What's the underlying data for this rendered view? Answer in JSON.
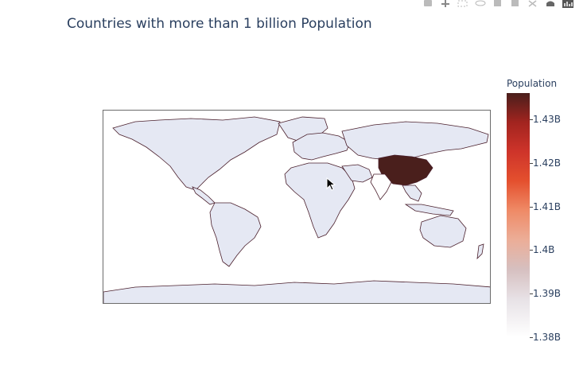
{
  "chart_data": {
    "type": "choropleth",
    "title": "Countries with more than 1 billion Population",
    "colorbar": {
      "title": "Population",
      "ticks": [
        "1.43B",
        "1.42B",
        "1.41B",
        "1.4B",
        "1.39B",
        "1.38B"
      ],
      "tick_values": [
        1430000000,
        1420000000,
        1410000000,
        1400000000,
        1390000000,
        1380000000
      ],
      "range": [
        1380000000,
        1436000000
      ],
      "colorscale": [
        "#ffffff",
        "#e8e3e7",
        "#d6bfbf",
        "#ecad97",
        "#ef8a66",
        "#e4502e",
        "#ce342a",
        "#a2241f",
        "#4a1f1c"
      ]
    },
    "land_color": "#e5e8f3",
    "coastline_color": "#4a1f2c",
    "highlighted_regions": [
      {
        "region": "china",
        "value": 1436000000
      },
      {
        "region": "india",
        "value": 1380000000
      }
    ]
  },
  "modebar": {
    "icons": [
      "camera-icon",
      "pan-icon",
      "box-select-icon",
      "lasso-icon",
      "zoom-in-icon",
      "zoom-out-icon",
      "autoscale-icon",
      "reset-icon",
      "plotly-logo-icon"
    ]
  }
}
